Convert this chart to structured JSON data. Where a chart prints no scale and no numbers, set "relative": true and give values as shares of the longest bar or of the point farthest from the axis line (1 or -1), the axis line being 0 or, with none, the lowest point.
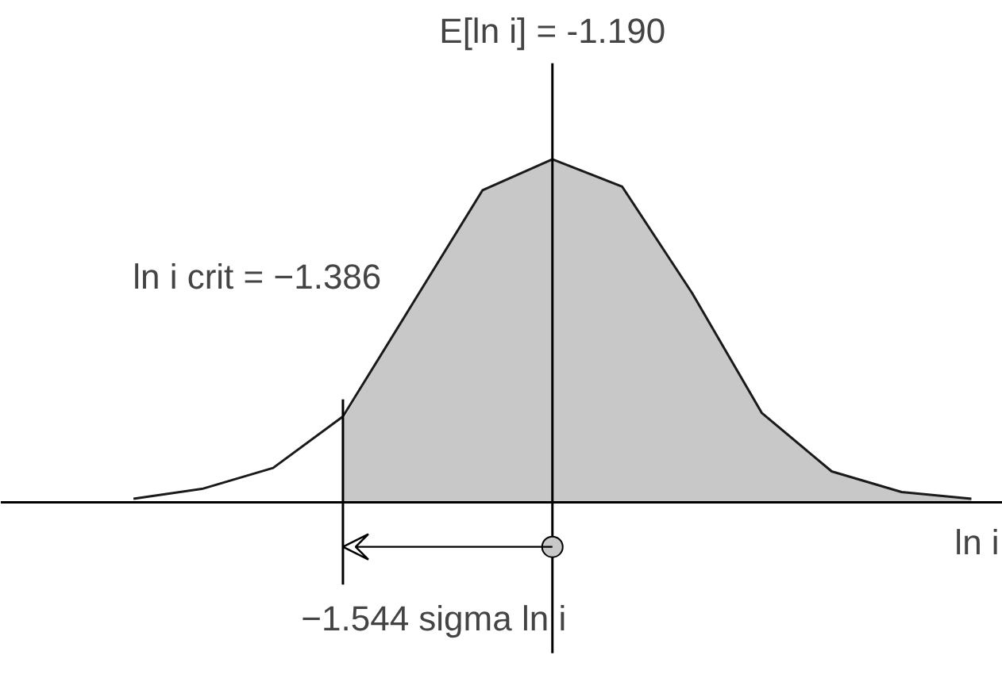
{
  "chart_data": {
    "type": "line",
    "relative": true,
    "xlabel": "ln i",
    "grid": false,
    "marker": "none",
    "categories": [
      null,
      null,
      null,
      null,
      null,
      null,
      null,
      null,
      null,
      null,
      null,
      null,
      null
    ],
    "series": [
      {
        "type": "area",
        "color": "#c8c8c8",
        "values": [
          null,
          null,
          null,
          0.24,
          0.58,
          0.91,
          1.0,
          0.92,
          0.61,
          0.26,
          0.09,
          0.03,
          0.01
        ]
      },
      {
        "color": "#1a1a1a",
        "values": [
          0.01,
          0.04,
          0.1,
          0.25,
          0.58,
          0.91,
          1.0,
          0.92,
          0.61,
          0.26,
          0.09,
          0.03,
          0.01
        ]
      }
    ],
    "annotations": [
      "E[ln i] = -1.190",
      "ln i crit = −1.386",
      "−1.544 sigma ln i"
    ]
  }
}
